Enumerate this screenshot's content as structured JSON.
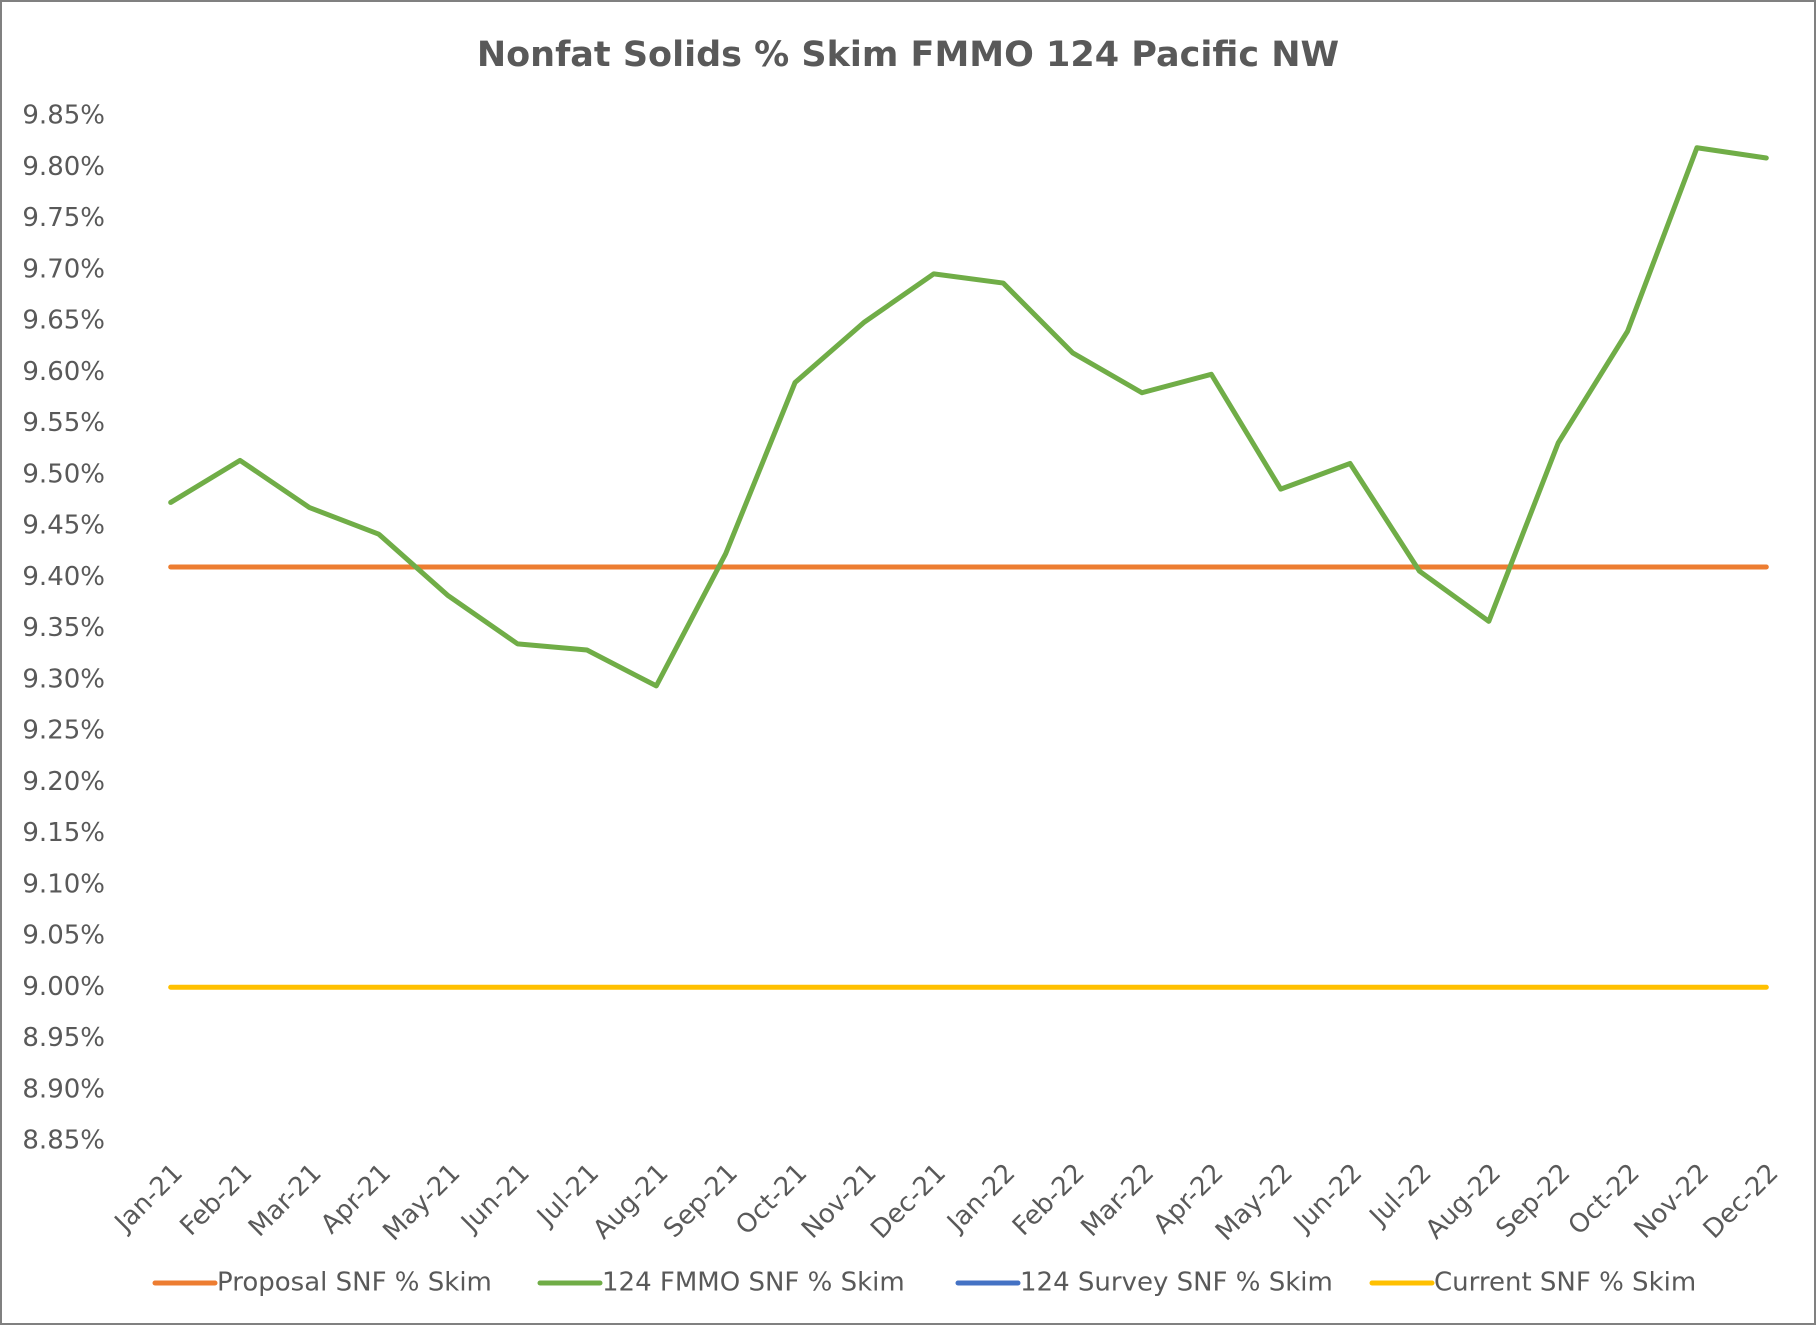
{
  "chart_data": {
    "type": "line",
    "title": "Nonfat Solids % Skim FMMO 124 Pacific NW",
    "categories": [
      "Jan-21",
      "Feb-21",
      "Mar-21",
      "Apr-21",
      "May-21",
      "Jun-21",
      "Jul-21",
      "Aug-21",
      "Sep-21",
      "Oct-21",
      "Nov-21",
      "Dec-21",
      "Jan-22",
      "Feb-22",
      "Mar-22",
      "Apr-22",
      "May-22",
      "Jun-22",
      "Jul-22",
      "Aug-22",
      "Sep-22",
      "Oct-22",
      "Nov-22",
      "Dec-22"
    ],
    "series": [
      {
        "name": "Proposal SNF % Skim",
        "color": "#ed7d31",
        "values": [
          9.41,
          9.41,
          9.41,
          9.41,
          9.41,
          9.41,
          9.41,
          9.41,
          9.41,
          9.41,
          9.41,
          9.41,
          9.41,
          9.41,
          9.41,
          9.41,
          9.41,
          9.41,
          9.41,
          9.41,
          9.41,
          9.41,
          9.41,
          9.41
        ]
      },
      {
        "name": "124 FMMO SNF % Skim",
        "color": "#70ad47",
        "values": [
          9.473,
          9.514,
          9.468,
          9.442,
          9.382,
          9.335,
          9.329,
          9.294,
          9.423,
          9.59,
          9.649,
          9.696,
          9.687,
          9.619,
          9.58,
          9.598,
          9.486,
          9.511,
          9.406,
          9.357,
          9.531,
          9.64,
          9.819,
          9.809
        ]
      },
      {
        "name": "124 Survey SNF % Skim",
        "color": "#4472c4",
        "values": [
          null,
          null,
          null,
          null,
          null,
          null,
          null,
          null,
          null,
          null,
          null,
          null,
          null,
          null,
          null,
          null,
          null,
          null,
          null,
          null,
          null,
          null,
          null,
          null
        ]
      },
      {
        "name": "Current SNF % Skim",
        "color": "#ffc000",
        "values": [
          9,
          9,
          9,
          9,
          9,
          9,
          9,
          9,
          9,
          9,
          9,
          9,
          9,
          9,
          9,
          9,
          9,
          9,
          9,
          9,
          9,
          9,
          9,
          9
        ]
      }
    ],
    "ylim": [
      8.85,
      9.85
    ],
    "yticks": [
      {
        "value": 8.85,
        "label": "8.85%"
      },
      {
        "value": 8.9,
        "label": "8.90%"
      },
      {
        "value": 8.95,
        "label": "8.95%"
      },
      {
        "value": 9,
        "label": "9.00%"
      },
      {
        "value": 9.05,
        "label": "9.05%"
      },
      {
        "value": 9.1,
        "label": "9.10%"
      },
      {
        "value": 9.15,
        "label": "9.15%"
      },
      {
        "value": 9.2,
        "label": "9.20%"
      },
      {
        "value": 9.25,
        "label": "9.25%"
      },
      {
        "value": 9.3,
        "label": "9.30%"
      },
      {
        "value": 9.35,
        "label": "9.35%"
      },
      {
        "value": 9.4,
        "label": "9.40%"
      },
      {
        "value": 9.45,
        "label": "9.45%"
      },
      {
        "value": 9.5,
        "label": "9.50%"
      },
      {
        "value": 9.55,
        "label": "9.55%"
      },
      {
        "value": 9.6,
        "label": "9.60%"
      },
      {
        "value": 9.65,
        "label": "9.65%"
      },
      {
        "value": 9.7,
        "label": "9.70%"
      },
      {
        "value": 9.75,
        "label": "9.75%"
      },
      {
        "value": 9.8,
        "label": "9.80%"
      },
      {
        "value": 9.85,
        "label": "9.85%"
      }
    ],
    "grid": false,
    "legend": "bottom"
  }
}
